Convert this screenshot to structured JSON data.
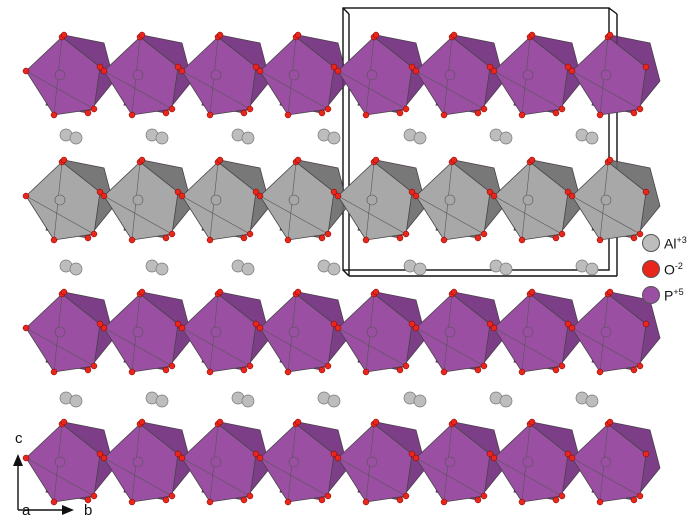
{
  "legend": {
    "items": [
      {
        "symbol": "Al",
        "charge": "+3",
        "color": "#bdbdbd"
      },
      {
        "symbol": "O",
        "charge": "-2",
        "color": "#e8261b"
      },
      {
        "symbol": "P",
        "charge": "+5",
        "color": "#9b4fa3"
      }
    ]
  },
  "axes": {
    "vertical": "c",
    "origin": "a",
    "horizontal": "b"
  },
  "colors": {
    "phosphate_layer": "#9b4fa3",
    "phosphate_dark": "#6e2a7a",
    "aluminum_layer": "#a8a8a8",
    "aluminum_dark": "#6a6a6a",
    "oxygen": "#e8261b",
    "aluminum_ion": "#bdbdbd"
  }
}
